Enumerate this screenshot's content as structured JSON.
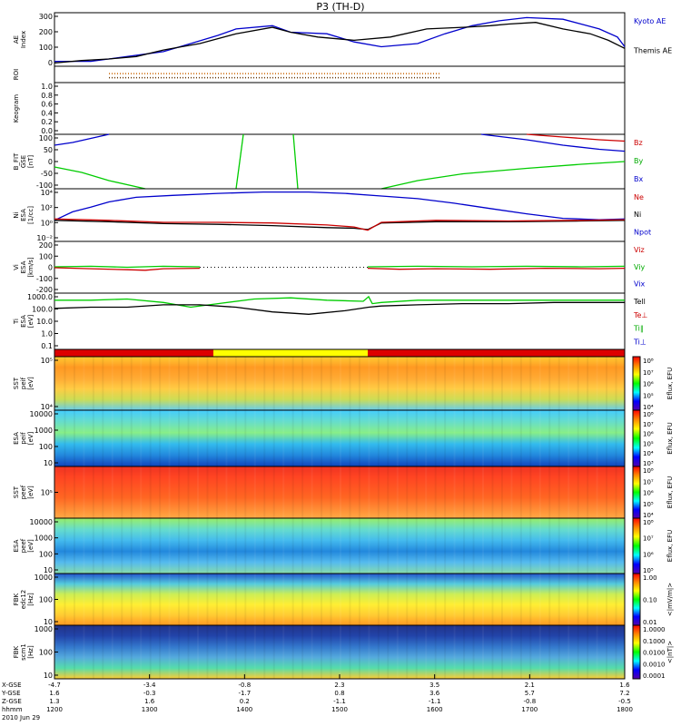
{
  "title": "P3 (TH-D)",
  "panels": [
    {
      "id": "ae",
      "type": "line",
      "ylabel": "AE Index",
      "yticks": [
        "0",
        "100",
        "200",
        "300"
      ],
      "yrange": [
        0,
        330
      ],
      "legend": [
        {
          "text": "Kyoto AE",
          "color": "#0000cc"
        },
        {
          "text": "Themis AE",
          "color": "#000000"
        }
      ],
      "series": [
        {
          "name": "Kyoto AE",
          "color": "#0000cc",
          "x": [
            0,
            40,
            80,
            120,
            150,
            180,
            200,
            240,
            260,
            300,
            330,
            360,
            400,
            430,
            460,
            490,
            520,
            560,
            580,
            600,
            620,
            628
          ],
          "y": [
            30,
            30,
            60,
            90,
            140,
            190,
            230,
            250,
            210,
            200,
            150,
            120,
            140,
            200,
            250,
            280,
            300,
            290,
            260,
            230,
            180,
            120
          ]
        },
        {
          "name": "Themis AE",
          "color": "#000000",
          "x": [
            0,
            30,
            60,
            90,
            120,
            140,
            160,
            200,
            240,
            260,
            290,
            330,
            370,
            410,
            450,
            480,
            500,
            530,
            560,
            590,
            610,
            628
          ],
          "y": [
            20,
            35,
            45,
            60,
            100,
            120,
            140,
            200,
            240,
            210,
            180,
            160,
            180,
            230,
            240,
            250,
            260,
            270,
            230,
            200,
            160,
            110
          ]
        }
      ]
    },
    {
      "id": "roi",
      "type": "dots",
      "ylabel": "ROI",
      "yticks": [],
      "yrange": [
        0,
        1
      ],
      "series": [
        {
          "color": "#cc6600",
          "x0": 60,
          "x1": 425,
          "y": 0.55
        },
        {
          "color": "#663300",
          "x0": 60,
          "x1": 425,
          "y": 0.3
        }
      ]
    },
    {
      "id": "keo",
      "type": "blank",
      "ylabel": "Keogram",
      "yticks": [
        "0.0",
        "0.2",
        "0.4",
        "0.6",
        "0.8",
        "1.0"
      ],
      "yrange": [
        0,
        1
      ]
    },
    {
      "id": "bfit",
      "type": "line",
      "ylabel": "B_FIT GSE [nT]",
      "yticks": [
        "-100",
        "-50",
        "0",
        "50",
        "100"
      ],
      "yrange": [
        -100,
        100
      ],
      "legend": [
        {
          "text": "Bz",
          "color": "#cc0000"
        },
        {
          "text": "By",
          "color": "#00aa00"
        },
        {
          "text": "Bx",
          "color": "#0000cc"
        }
      ],
      "series": [
        {
          "name": "Bx",
          "color": "#0000cc",
          "x": [
            0,
            20,
            40,
            60
          ],
          "y": [
            60,
            70,
            85,
            100
          ]
        },
        {
          "name": "Bx",
          "color": "#0000cc",
          "x": [
            470,
            520,
            560,
            600,
            628
          ],
          "y": [
            100,
            80,
            60,
            45,
            38
          ]
        },
        {
          "name": "By",
          "color": "#00cc00",
          "x": [
            0,
            30,
            60,
            100
          ],
          "y": [
            -20,
            -40,
            -70,
            -100
          ]
        },
        {
          "name": "By",
          "color": "#00cc00",
          "x": [
            200,
            208
          ],
          "y": [
            -100,
            100
          ]
        },
        {
          "name": "By",
          "color": "#00cc00",
          "x": [
            263,
            268
          ],
          "y": [
            100,
            -100
          ]
        },
        {
          "name": "By",
          "color": "#00cc00",
          "x": [
            360,
            400,
            450,
            520,
            580,
            628
          ],
          "y": [
            -100,
            -70,
            -45,
            -25,
            -10,
            0
          ]
        },
        {
          "name": "Bz",
          "color": "#cc0000",
          "x": [
            520,
            560,
            600,
            628
          ],
          "y": [
            100,
            90,
            80,
            75
          ]
        }
      ]
    },
    {
      "id": "ni",
      "type": "line",
      "ylabel": "Ni ESA [1/cc]",
      "yticks": [
        "10⁻²",
        "10⁰",
        "10²",
        "10⁴"
      ],
      "yrange": [
        -3,
        5
      ],
      "log": true,
      "legend": [
        {
          "text": "Ne",
          "color": "#cc0000"
        },
        {
          "text": "Ni",
          "color": "#000000"
        },
        {
          "text": "Npot",
          "color": "#0000cc"
        }
      ],
      "series": [
        {
          "name": "Npot",
          "color": "#0000cc",
          "x": [
            0,
            20,
            40,
            60,
            90,
            130,
            180,
            230,
            280,
            320,
            360,
            400,
            440,
            480,
            520,
            560,
            600,
            628
          ],
          "y": [
            0.2,
            1.5,
            2.2,
            3.0,
            3.7,
            4.0,
            4.3,
            4.5,
            4.5,
            4.3,
            3.9,
            3.5,
            2.8,
            2.0,
            1.2,
            0.5,
            0.3,
            0.4
          ]
        },
        {
          "name": "Ni",
          "color": "#000000",
          "x": [
            0,
            60,
            120,
            180,
            240,
            300,
            330,
            345,
            360,
            420,
            500,
            580,
            628
          ],
          "y": [
            0.2,
            0,
            -0.3,
            -0.4,
            -0.6,
            -0.9,
            -1.0,
            -1.2,
            -0.2,
            0,
            0,
            0.1,
            0.2
          ]
        },
        {
          "name": "Ne",
          "color": "#cc0000",
          "x": [
            0,
            60,
            120,
            180,
            240,
            300,
            330,
            345,
            360,
            420,
            500,
            580,
            628
          ],
          "y": [
            0.4,
            0.2,
            -0.1,
            -0.1,
            -0.2,
            -0.5,
            -0.8,
            -1.3,
            -0.1,
            0.2,
            0.1,
            0.2,
            0.3
          ]
        }
      ]
    },
    {
      "id": "vi",
      "type": "line",
      "ylabel": "Vi ESA [km/s]",
      "yticks": [
        "-200",
        "-100",
        "0",
        "100",
        "200"
      ],
      "yrange": [
        -260,
        260
      ],
      "legend": [
        {
          "text": "Viz",
          "color": "#cc0000"
        },
        {
          "text": "Viy",
          "color": "#00aa00"
        },
        {
          "text": "Vix",
          "color": "#0000cc"
        }
      ],
      "series": [
        {
          "name": "Viy",
          "color": "#00cc00",
          "x": [
            0,
            40,
            80,
            120,
            160
          ],
          "y": [
            5,
            10,
            0,
            10,
            5
          ]
        },
        {
          "name": "Viz",
          "color": "#cc0000",
          "x": [
            0,
            40,
            80,
            100,
            120,
            160
          ],
          "y": [
            -5,
            -15,
            -25,
            -30,
            -15,
            -10
          ]
        },
        {
          "name": "Viy",
          "color": "#00cc00",
          "x": [
            345,
            400,
            460,
            520,
            580,
            628
          ],
          "y": [
            5,
            10,
            5,
            10,
            5,
            10
          ]
        },
        {
          "name": "Viz",
          "color": "#cc0000",
          "x": [
            345,
            380,
            420,
            480,
            540,
            600,
            628
          ],
          "y": [
            -10,
            -20,
            -15,
            -20,
            -10,
            -15,
            -10
          ]
        }
      ]
    },
    {
      "id": "ti",
      "type": "line",
      "ylabel": "Ti ESA [eV]",
      "yticks": [
        "0.1",
        "1.0",
        "10.0",
        "100.0",
        "1000.0"
      ],
      "yrange": [
        -1.2,
        3.6
      ],
      "log": true,
      "legend": [
        {
          "text": "Tell",
          "color": "#000000"
        },
        {
          "text": "Te⊥",
          "color": "#cc0000"
        },
        {
          "text": "Ti∥",
          "color": "#00aa00"
        },
        {
          "text": "Ti⊥",
          "color": "#0000cc"
        }
      ],
      "series": [
        {
          "name": "Ti",
          "color": "#00cc00",
          "x": [
            0,
            40,
            80,
            120,
            150,
            180,
            220,
            260,
            300,
            340,
            346,
            350,
            360,
            400,
            450,
            500,
            550,
            600,
            628
          ],
          "y": [
            3.0,
            3.0,
            3.1,
            2.8,
            2.4,
            2.7,
            3.1,
            3.2,
            3.0,
            2.9,
            3.3,
            2.7,
            2.8,
            3.0,
            3.0,
            3.0,
            3.0,
            3.0,
            3.0
          ]
        },
        {
          "name": "Te",
          "color": "#000000",
          "x": [
            0,
            40,
            80,
            120,
            160,
            200,
            240,
            280,
            320,
            346,
            360,
            400,
            450,
            500,
            550,
            600,
            628
          ],
          "y": [
            2.3,
            2.4,
            2.4,
            2.6,
            2.6,
            2.4,
            2.0,
            1.8,
            2.1,
            2.4,
            2.5,
            2.6,
            2.7,
            2.7,
            2.8,
            2.8,
            2.8
          ]
        }
      ]
    },
    {
      "id": "bar",
      "type": "statusbar",
      "ylabel": "",
      "yticks": [],
      "segments": [
        {
          "x0": 0,
          "x1": 175,
          "color": "#dd0000"
        },
        {
          "x0": 175,
          "x1": 345,
          "color": "#ffff00"
        },
        {
          "x0": 345,
          "x1": 628,
          "color": "#dd0000"
        }
      ]
    },
    {
      "id": "sst1",
      "type": "spectrogram",
      "ylabel": "SST peif [eV]",
      "yticks": [
        "10⁴",
        "10⁵"
      ],
      "cbar": "efi_efu",
      "cbar_label": "Eflux, EFU",
      "cticks": [
        "10⁴",
        "10⁵",
        "10⁶",
        "10⁷",
        "10⁸"
      ],
      "bands": [
        {
          "color": "#ffcc33"
        },
        {
          "color": "#ff9922"
        },
        {
          "color": "#ffaa33"
        },
        {
          "color": "#ffcc44"
        },
        {
          "color": "#ccdd55"
        },
        {
          "color": "#66ccee"
        }
      ]
    },
    {
      "id": "esa1",
      "type": "spectrogram",
      "ylabel": "ESA peif [eV]",
      "yticks": [
        "10",
        "100",
        "1000",
        "10000"
      ],
      "cbar": "efi_efu",
      "cbar_label": "Eflux, EFU",
      "cticks": [
        "10³",
        "10⁴",
        "10⁵",
        "10⁶",
        "10⁷",
        "10⁸"
      ],
      "bands": [
        {
          "color": "#44ccff"
        },
        {
          "color": "#66ddcc"
        },
        {
          "color": "#88ee88"
        },
        {
          "color": "#33bbee"
        },
        {
          "color": "#2288dd"
        },
        {
          "color": "#1144bb"
        }
      ]
    },
    {
      "id": "sst2",
      "type": "spectrogram",
      "ylabel": "SST peef [eV]",
      "yticks": [
        "10⁵"
      ],
      "cbar": "efi_efu",
      "cbar_label": "Eflux, EFU",
      "cticks": [
        "10⁴",
        "10⁵",
        "10⁶",
        "10⁷",
        "10⁸"
      ],
      "bands": [
        {
          "color": "#ee3322"
        },
        {
          "color": "#ff4422"
        },
        {
          "color": "#ff5522"
        },
        {
          "color": "#ff6622"
        },
        {
          "color": "#ff8833"
        },
        {
          "color": "#ffaa44"
        }
      ]
    },
    {
      "id": "esa2",
      "type": "spectrogram",
      "ylabel": "ESA peef [eV]",
      "yticks": [
        "10",
        "100",
        "1000",
        "10000"
      ],
      "cbar": "efi_efu",
      "cbar_label": "Eflux, EFU",
      "cticks": [
        "10⁵",
        "10⁶",
        "10⁷",
        "10⁸"
      ],
      "bands": [
        {
          "color": "#99ee66"
        },
        {
          "color": "#66ddcc"
        },
        {
          "color": "#44bbee"
        },
        {
          "color": "#2288dd"
        },
        {
          "color": "#55bbee"
        },
        {
          "color": "#88ddaa"
        }
      ]
    },
    {
      "id": "fbk1",
      "type": "spectrogram",
      "ylabel": "FBK edc12 [Hz]",
      "yticks": [
        "10",
        "100",
        "1000"
      ],
      "cbar": "mv",
      "cbar_label": "<|mV/m|>",
      "cticks": [
        "0.01",
        "0.10",
        "1.00"
      ],
      "bands": [
        {
          "color": "#2255cc"
        },
        {
          "color": "#55ccdd"
        },
        {
          "color": "#ccee55"
        },
        {
          "color": "#ffee33"
        },
        {
          "color": "#ffcc33"
        },
        {
          "color": "#ff9922"
        }
      ]
    },
    {
      "id": "fbk2",
      "type": "spectrogram",
      "ylabel": "FBK scm1 [Hz]",
      "yticks": [
        "10",
        "100",
        "1000"
      ],
      "cbar": "nt",
      "cbar_label": "<|nT|>",
      "cticks": [
        "0.0001",
        "0.0010",
        "0.0100",
        "0.1000",
        "1.0000"
      ],
      "bands": [
        {
          "color": "#223388"
        },
        {
          "color": "#2244aa"
        },
        {
          "color": "#3377cc"
        },
        {
          "color": "#55aadd"
        },
        {
          "color": "#55ddaa"
        },
        {
          "color": "#ffcc33"
        }
      ]
    }
  ],
  "xaxis": {
    "rows": [
      {
        "label": "X-GSE",
        "values": [
          "-4.7",
          "-3.4",
          "-0.8",
          "2.3",
          "3.5",
          "2.1",
          "1.6"
        ]
      },
      {
        "label": "Y-GSE",
        "values": [
          "1.6",
          "-0.3",
          "-1.7",
          "0.8",
          "3.6",
          "5.7",
          "7.2"
        ]
      },
      {
        "label": "Z-GSE",
        "values": [
          "1.3",
          "1.6",
          "0.2",
          "-1.1",
          "-1.1",
          "-0.8",
          "-0.5"
        ]
      },
      {
        "label": "hhmm",
        "values": [
          "1200",
          "1300",
          "1400",
          "1500",
          "1600",
          "1700",
          "1800"
        ]
      }
    ],
    "date": "2010 Jun 29"
  }
}
